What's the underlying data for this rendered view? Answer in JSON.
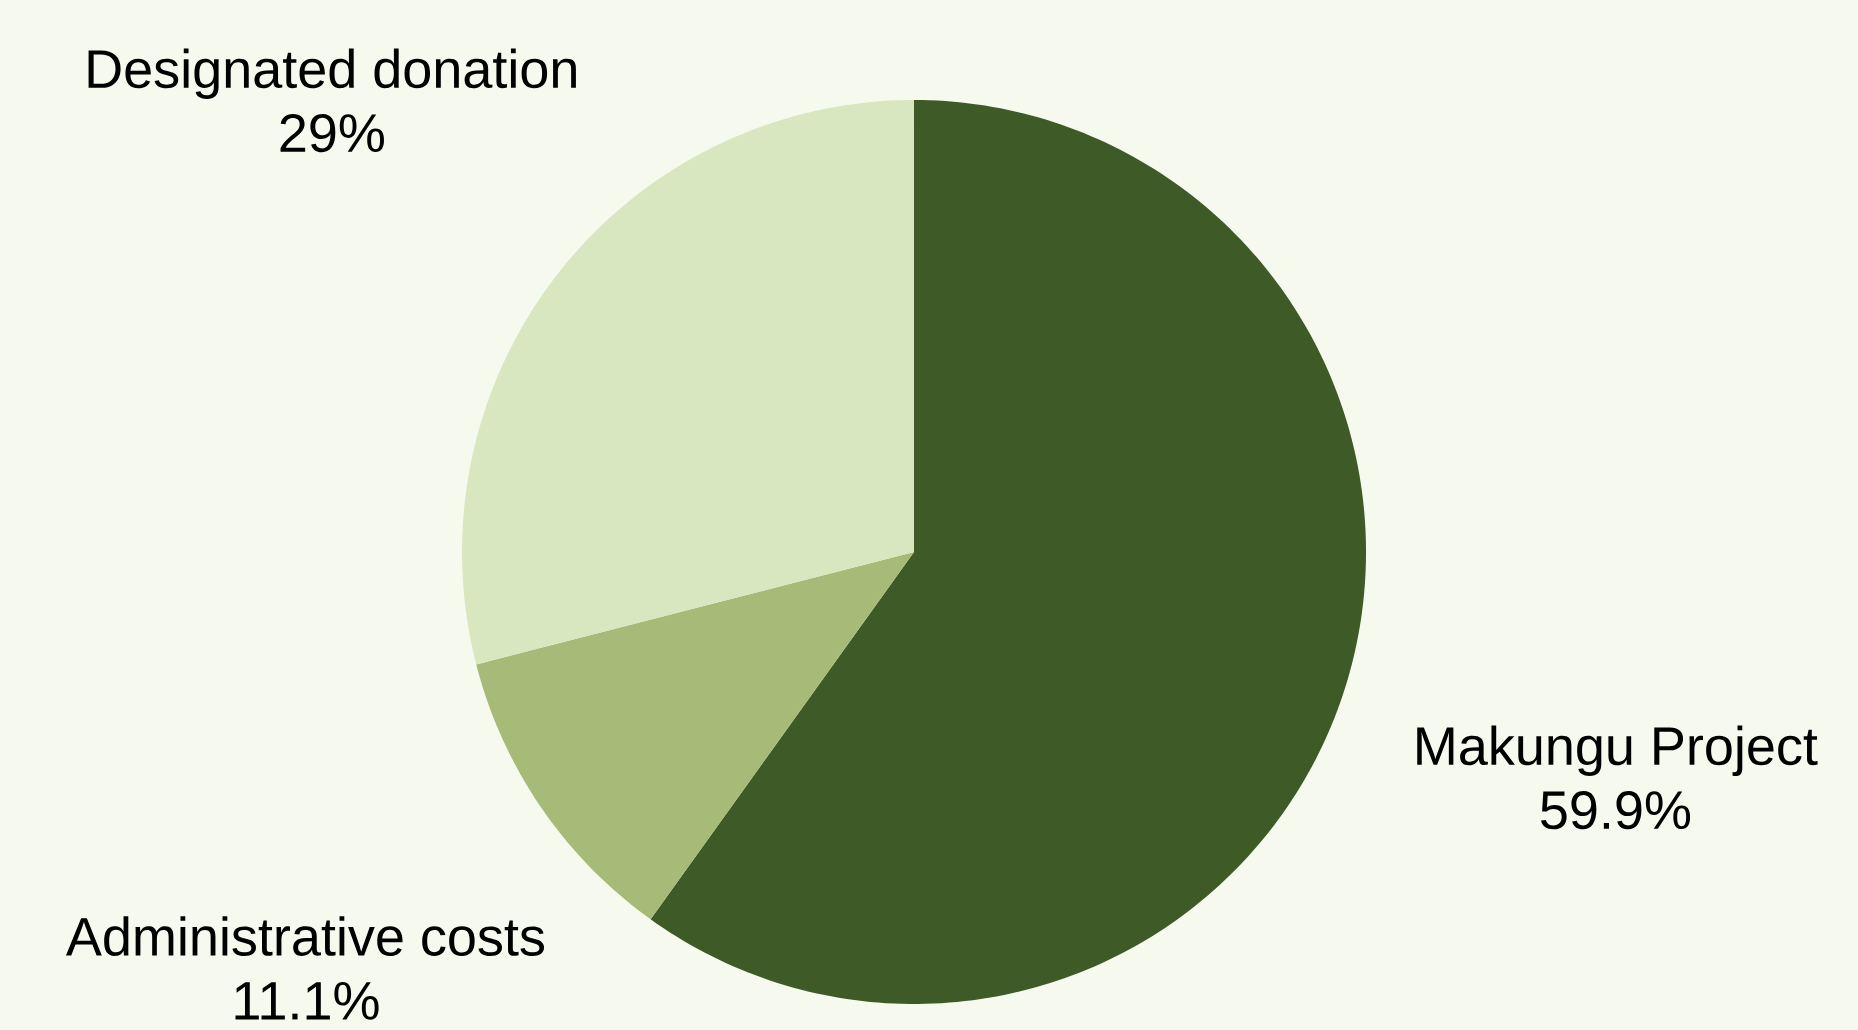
{
  "chart_data": {
    "type": "pie",
    "categories": [
      "Makungu Project",
      "Administrative costs",
      "Designated donation"
    ],
    "values": [
      59.9,
      11.1,
      29
    ],
    "value_labels": [
      "59.9%",
      "11.1%",
      "29%"
    ],
    "colors": [
      "#3d5a27",
      "#a6bb78",
      "#d9e7c0"
    ]
  }
}
